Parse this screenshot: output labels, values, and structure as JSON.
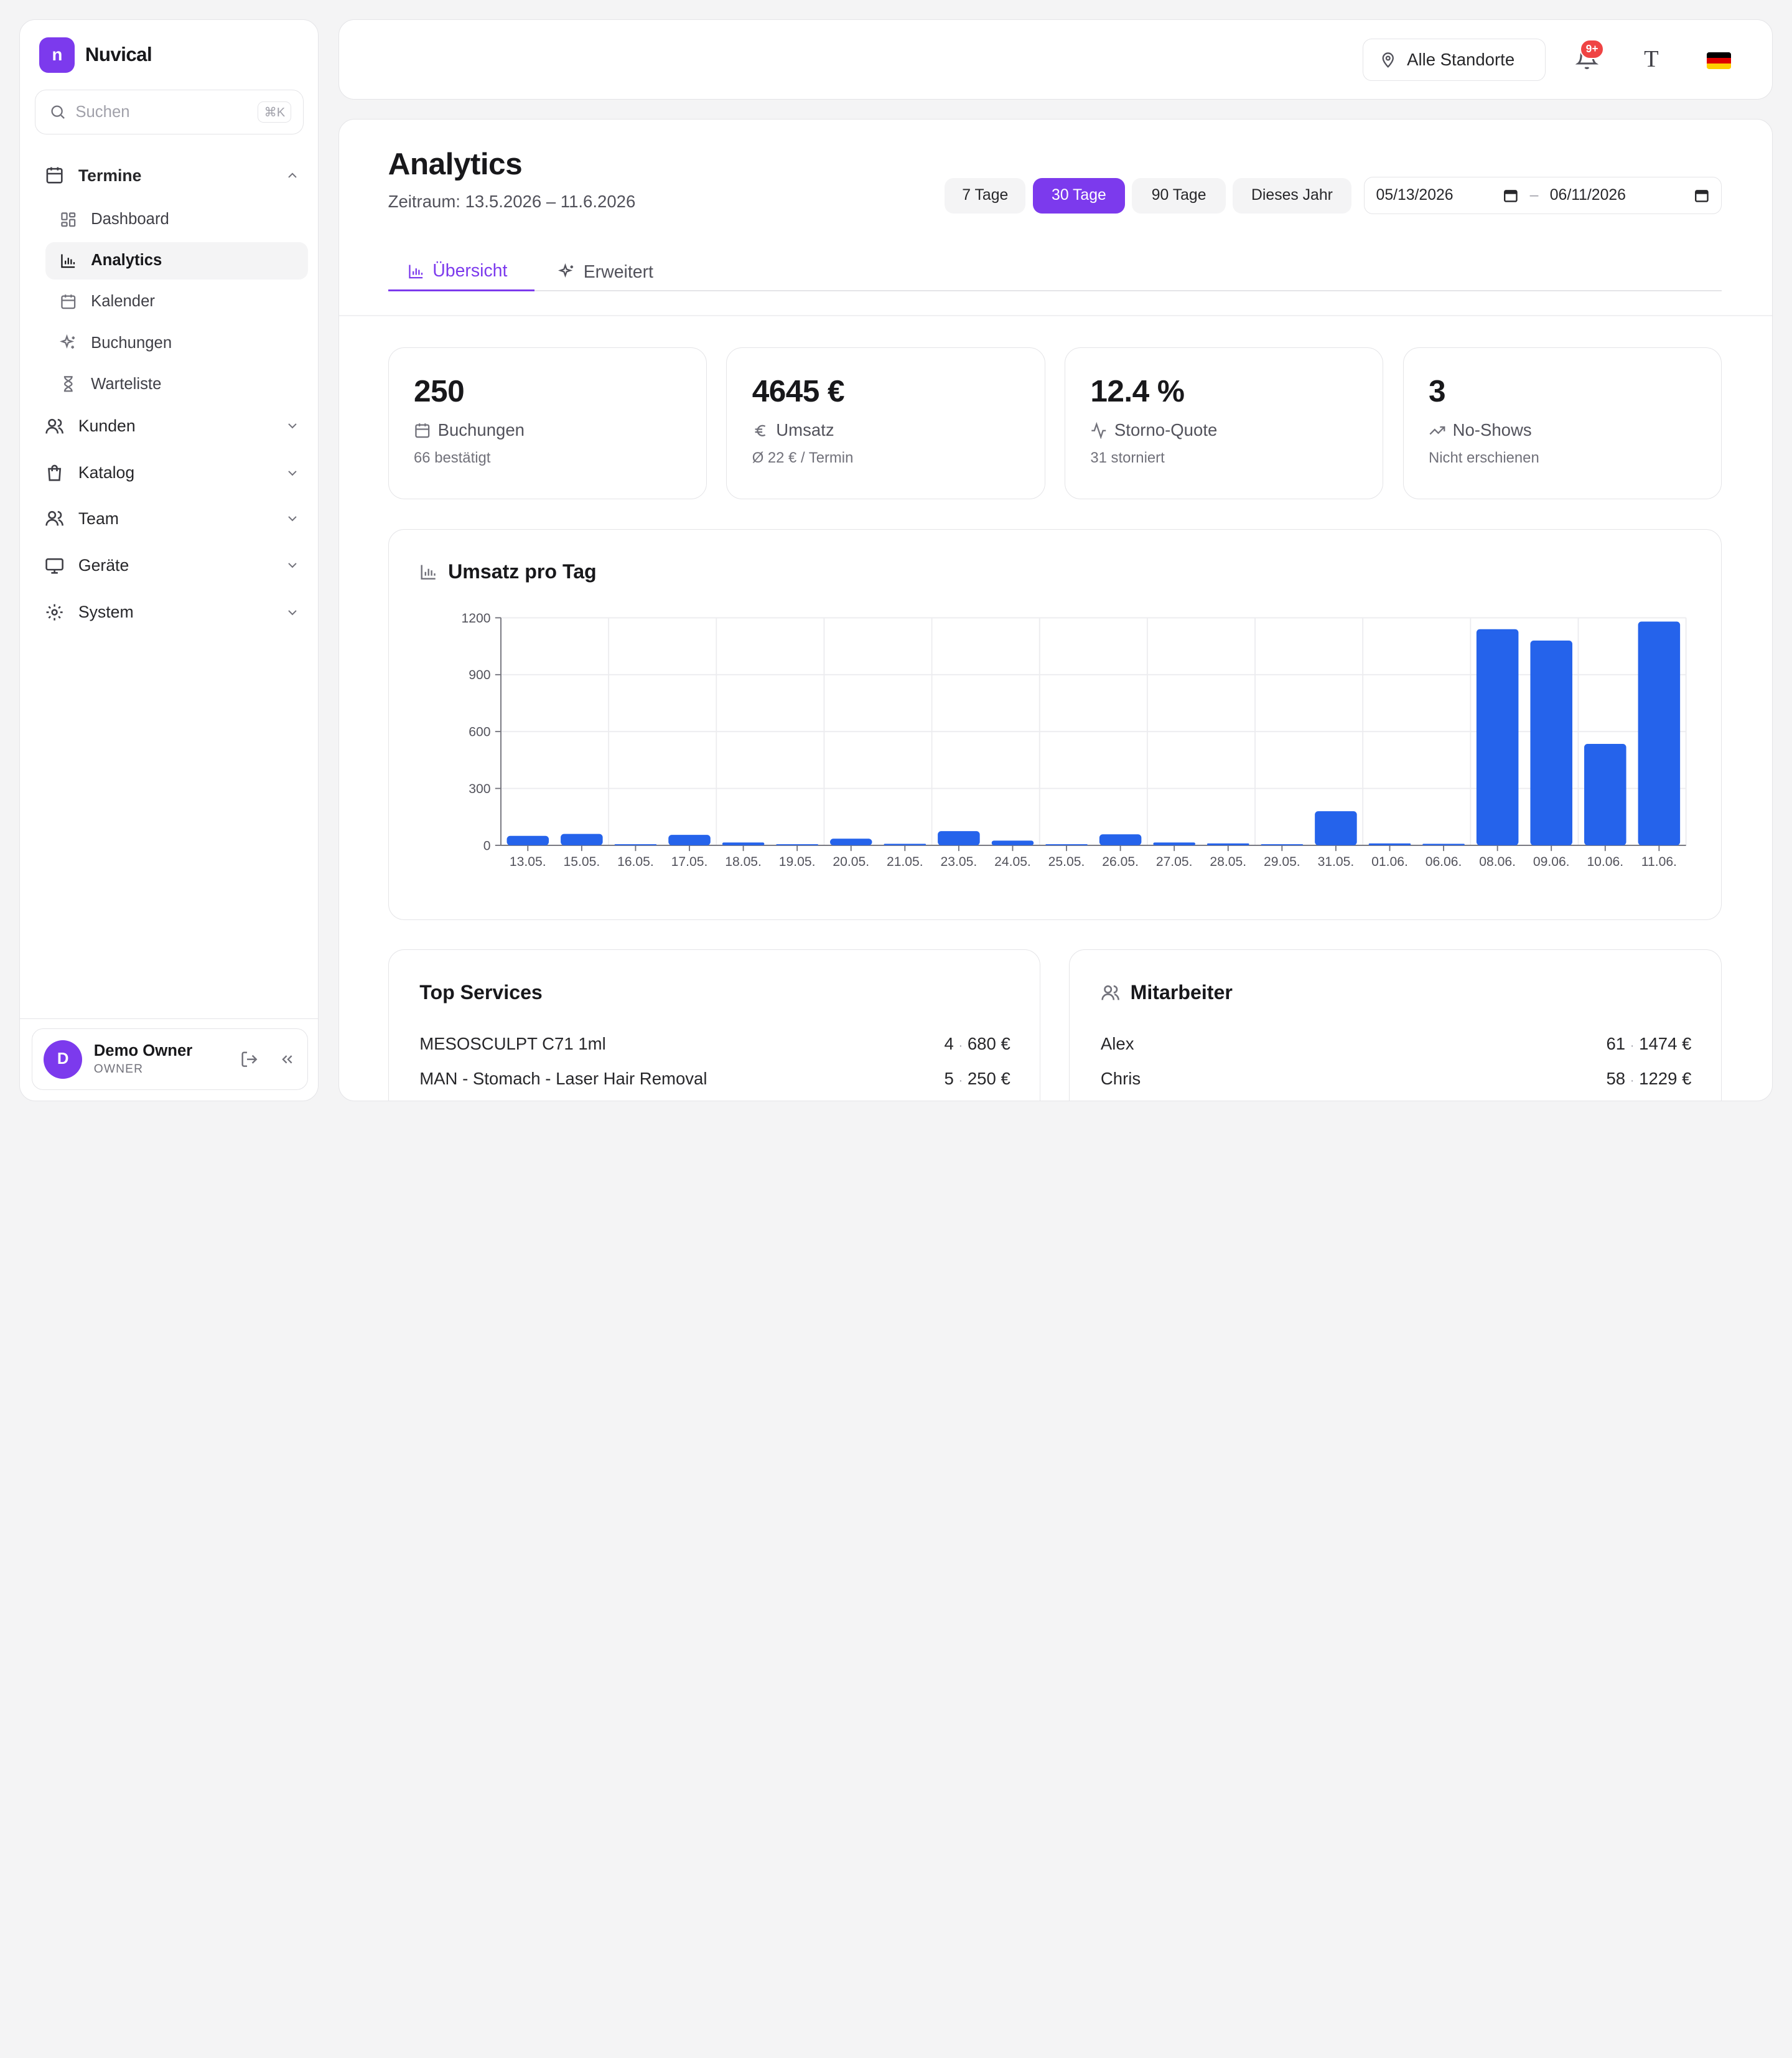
{
  "brand": {
    "logo_letter": "n",
    "name": "Nuvical"
  },
  "search": {
    "placeholder": "Suchen",
    "shortcut": "⌘K"
  },
  "sidebar": {
    "groups": [
      {
        "label": "Termine",
        "icon": "calendar-icon",
        "expanded": true
      },
      {
        "label": "Kunden",
        "icon": "users-icon",
        "expanded": false
      },
      {
        "label": "Katalog",
        "icon": "shopping-bag-icon",
        "expanded": false
      },
      {
        "label": "Team",
        "icon": "team-icon",
        "expanded": false
      },
      {
        "label": "Geräte",
        "icon": "monitor-icon",
        "expanded": false
      },
      {
        "label": "System",
        "icon": "gear-icon",
        "expanded": false
      }
    ],
    "termine_items": [
      {
        "label": "Dashboard",
        "icon": "dashboard-icon",
        "active": false
      },
      {
        "label": "Analytics",
        "icon": "bar-chart-icon",
        "active": true
      },
      {
        "label": "Kalender",
        "icon": "calendar-icon",
        "active": false
      },
      {
        "label": "Buchungen",
        "icon": "sparkles-icon",
        "active": false
      },
      {
        "label": "Warteliste",
        "icon": "hourglass-icon",
        "active": false
      }
    ]
  },
  "user": {
    "initial": "D",
    "name": "Demo Owner",
    "role": "OWNER"
  },
  "topbar": {
    "location_label": "Alle Standorte",
    "notification_count": "9+",
    "font_toggle": "T",
    "language_flag": "german-flag-icon"
  },
  "page": {
    "title": "Analytics",
    "subtitle": "Zeitraum: 13.5.2026 – 11.6.2026",
    "range_buttons": [
      {
        "label": "7 Tage",
        "active": false
      },
      {
        "label": "30 Tage",
        "active": true
      },
      {
        "label": "90 Tage",
        "active": false
      },
      {
        "label": "Dieses Jahr",
        "active": false
      }
    ],
    "date_from": "05/13/2026",
    "date_separator": "–",
    "date_to": "06/11/2026",
    "tabs": [
      {
        "label": "Übersicht",
        "icon": "bar-chart-icon",
        "active": true
      },
      {
        "label": "Erweitert",
        "icon": "sparkles-icon",
        "active": false
      }
    ]
  },
  "kpis": [
    {
      "value": "250",
      "label": "Buchungen",
      "sub": "66 bestätigt",
      "icon": "calendar-icon"
    },
    {
      "value": "4645 €",
      "label": "Umsatz",
      "sub": "Ø 22 € / Termin",
      "icon": "euro-icon"
    },
    {
      "value": "12.4 %",
      "label": "Storno-Quote",
      "sub": "31 storniert",
      "icon": "activity-icon"
    },
    {
      "value": "3",
      "label": "No-Shows",
      "sub": "Nicht erschienen",
      "icon": "trending-up-icon"
    }
  ],
  "chart_data": {
    "type": "bar",
    "title": "Umsatz pro Tag",
    "xlabel": "",
    "ylabel": "",
    "ylim": [
      0,
      1200
    ],
    "yticks": [
      0,
      300,
      600,
      900,
      1200
    ],
    "grid": true,
    "color": "#2563eb",
    "categories": [
      "13.05.",
      "15.05.",
      "16.05.",
      "17.05.",
      "18.05.",
      "19.05.",
      "20.05.",
      "21.05.",
      "23.05.",
      "24.05.",
      "25.05.",
      "26.05.",
      "27.05.",
      "28.05.",
      "29.05.",
      "31.05.",
      "01.06.",
      "06.06.",
      "08.06.",
      "09.06.",
      "10.06.",
      "11.06."
    ],
    "values": [
      50,
      60,
      2,
      55,
      15,
      3,
      35,
      8,
      75,
      25,
      5,
      58,
      15,
      10,
      5,
      180,
      10,
      8,
      1140,
      1080,
      535,
      1180
    ]
  },
  "top_services": {
    "title": "Top Services",
    "rows": [
      {
        "name": "MESOSCULPT C71 1ml",
        "count": "4",
        "sep": "·",
        "amount": "680 €"
      },
      {
        "name": "MAN - Stomach - Laser Hair Removal",
        "count": "5",
        "sep": "·",
        "amount": "250 €"
      }
    ]
  },
  "staff": {
    "title": "Mitarbeiter",
    "rows": [
      {
        "name": "Alex",
        "count": "61",
        "sep": "·",
        "amount": "1474 €"
      },
      {
        "name": "Chris",
        "count": "58",
        "sep": "·",
        "amount": "1229 €"
      }
    ]
  }
}
